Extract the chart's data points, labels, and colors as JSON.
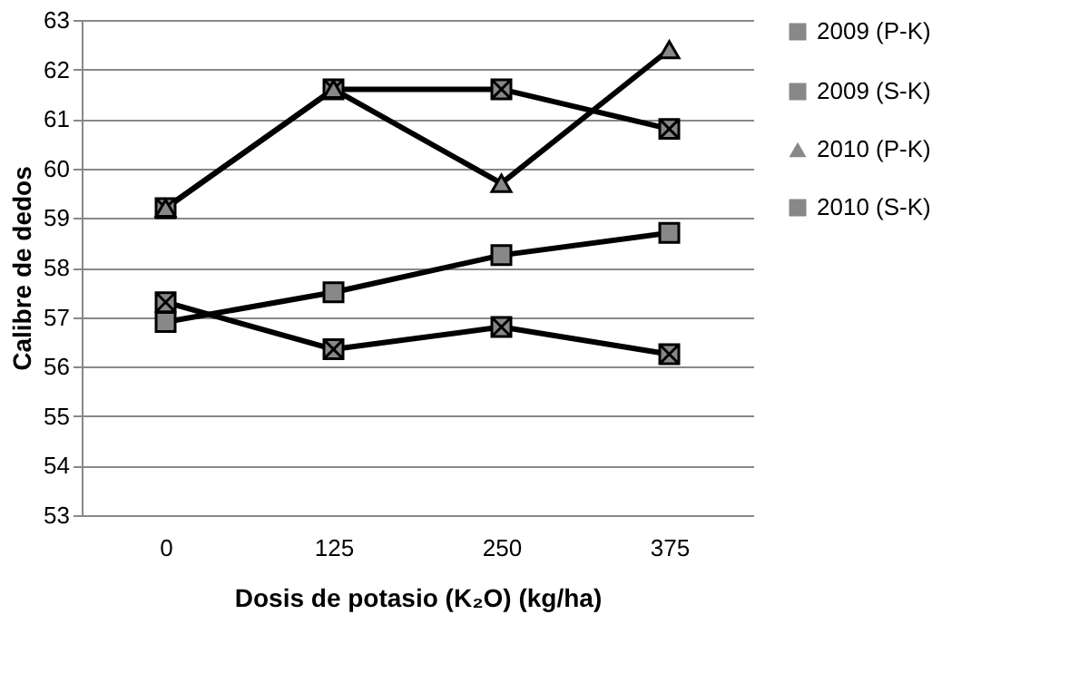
{
  "chart_data": {
    "type": "line",
    "xlabel": "Dosis de potasio (K₂O) (kg/ha)",
    "ylabel": "Calibre de dedos",
    "categories": [
      "0",
      "125",
      "250",
      "375"
    ],
    "series": [
      {
        "name": "2009 (P-K)",
        "color": "#000000",
        "marker": "cross",
        "values": [
          59.2,
          61.6,
          61.6,
          60.8
        ]
      },
      {
        "name": "2009 (S-K)",
        "color": "#000000",
        "marker": "square",
        "values": [
          56.9,
          57.5,
          58.25,
          58.7
        ]
      },
      {
        "name": "2010 (P-K)",
        "color": "#000000",
        "marker": "triangle",
        "values": [
          59.2,
          61.6,
          59.7,
          62.4
        ]
      },
      {
        "name": "2010 (S-K)",
        "color": "#000000",
        "marker": "cross",
        "values": [
          57.3,
          56.35,
          56.8,
          56.25
        ]
      }
    ],
    "ylim": [
      53,
      63
    ],
    "yticks": [
      53,
      54,
      55,
      56,
      57,
      58,
      59,
      60,
      61,
      62,
      63
    ],
    "grid": "y",
    "legend": "right",
    "line_style": "solid"
  }
}
